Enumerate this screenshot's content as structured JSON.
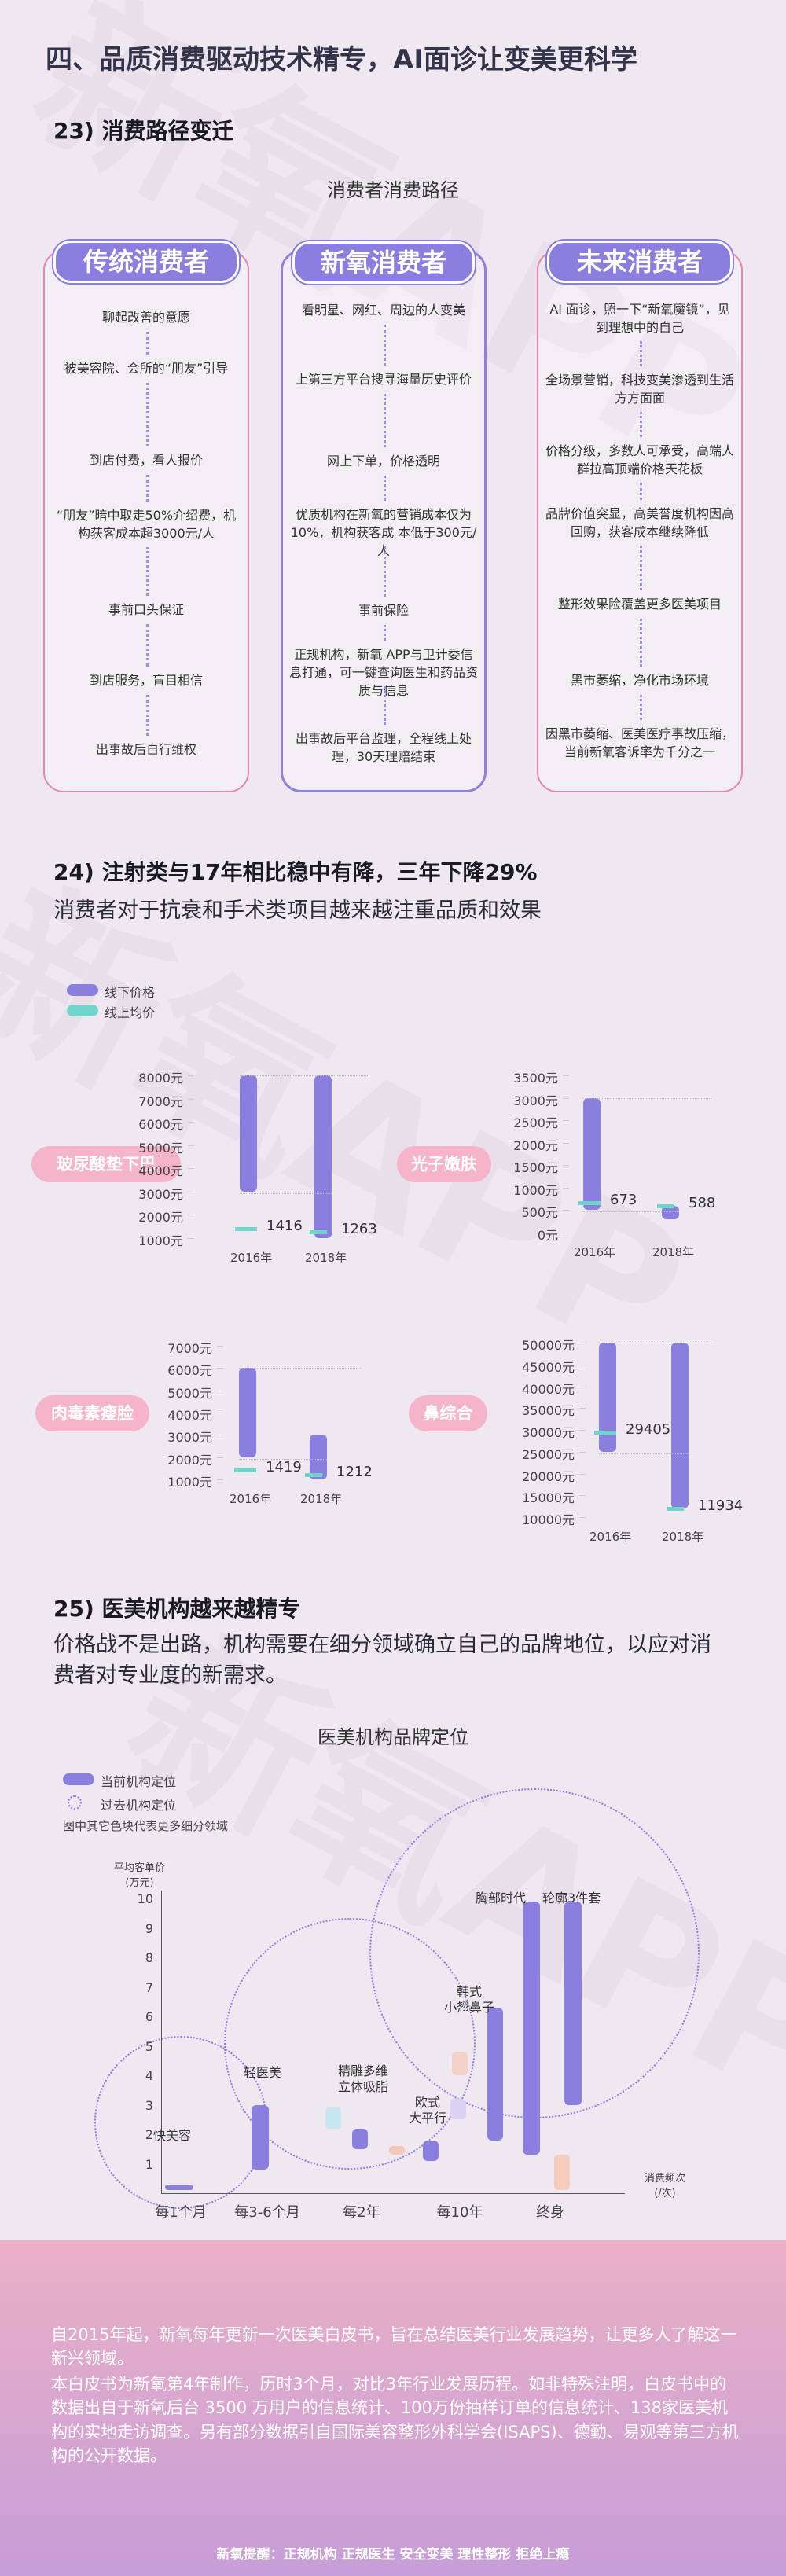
{
  "section_title": "四、品质消费驱动技术精专，AI面诊让变美更科学",
  "s23": {
    "heading": "23) 消费路径变迁",
    "chart_title": "消费者消费路径",
    "columns": [
      {
        "title": "传统消费者",
        "steps": [
          "聊起改善的意愿",
          "被美容院、会所的“朋友”引导",
          "到店付费，看人报价",
          "“朋友”暗中取走50%介绍费，机构获客成本超3000元/人",
          "事前口头保证",
          "到店服务，盲目相信",
          "出事故后自行维权"
        ]
      },
      {
        "title": "新氧消费者",
        "steps": [
          "看明星、网红、周边的人变美",
          "上第三方平台搜寻海量历史评价",
          "网上下单，价格透明",
          "优质机构在新氧的营销成本仅为 10%，机构获客成 本低于300元/人",
          "事前保险",
          "正规机构，新氧 APP与卫计委信息打通，可一键查询医生和药品资质与信息",
          "出事故后平台监理，全程线上处理，30天理赔结束"
        ]
      },
      {
        "title": "未来消费者",
        "steps": [
          "AI 面诊，照一下“新氧魔镜”，见到理想中的自己",
          "全场景营销，科技变美渗透到生活方方面面",
          "价格分级，多数人可承受，高端人群拉高顶端价格天花板",
          "品牌价值突显，高美誉度机构因高回购，获客成本继续降低",
          "整形效果险覆盖更多医美项目",
          "黑市萎缩，净化市场环境",
          "因黑市萎缩、医美医疗事故压缩，当前新氧客诉率为千分之一"
        ]
      }
    ]
  },
  "s24": {
    "heading": "24) 注射类与17年相比稳中有降，三年下降29%",
    "subheading": "消费者对于抗衰和手术类项目越来越注重品质和效果",
    "legend_offline": "线下价格",
    "legend_online": "线上均价",
    "colors": {
      "offline": "#8a7fde",
      "online": "#6fd5cb",
      "label": "#f6b4cb"
    },
    "year_labels": [
      "2016年",
      "2018年"
    ]
  },
  "chart_data": [
    {
      "type": "bar",
      "title": "玻尿酸垫下巴",
      "categories": [
        "2016年",
        "2018年"
      ],
      "yticks": [
        "8000元",
        "7000元",
        "6000元",
        "5000元",
        "4000元",
        "3000元",
        "2000元",
        "1000元"
      ],
      "ylim": [
        1000,
        8000
      ],
      "offline_range": [
        [
          3000,
          8000
        ],
        [
          1000,
          8000
        ]
      ],
      "online_avg": [
        1416,
        1263
      ],
      "online_labels": [
        "1416",
        "1263"
      ]
    },
    {
      "type": "bar",
      "title": "光子嫩肤",
      "categories": [
        "2016年",
        "2018年"
      ],
      "yticks": [
        "3500元",
        "3000元",
        "2500元",
        "2000元",
        "1500元",
        "1000元",
        "500元",
        "0元"
      ],
      "ylim": [
        0,
        3500
      ],
      "offline_range": [
        [
          500,
          3000
        ],
        [
          300,
          600
        ]
      ],
      "online_avg": [
        673,
        588
      ],
      "online_labels": [
        "673",
        "588"
      ]
    },
    {
      "type": "bar",
      "title": "肉毒素瘦脸",
      "categories": [
        "2016年",
        "2018年"
      ],
      "yticks": [
        "7000元",
        "6000元",
        "5000元",
        "4000元",
        "3000元",
        "2000元",
        "1000元"
      ],
      "ylim": [
        1000,
        7000
      ],
      "offline_range": [
        [
          2000,
          6000
        ],
        [
          1000,
          3000
        ]
      ],
      "online_avg": [
        1419,
        1212
      ],
      "online_labels": [
        "1419",
        "1212"
      ]
    },
    {
      "type": "bar",
      "title": "鼻综合",
      "categories": [
        "2016年",
        "2018年"
      ],
      "yticks": [
        "50000元",
        "45000元",
        "40000元",
        "35000元",
        "30000元",
        "25000元",
        "20000元",
        "15000元",
        "10000元"
      ],
      "ylim": [
        10000,
        50000
      ],
      "offline_range": [
        [
          25000,
          50000
        ],
        [
          12000,
          50000
        ]
      ],
      "online_avg": [
        29405,
        11934
      ],
      "online_labels": [
        "29405",
        "11934"
      ]
    },
    {
      "type": "bar",
      "title": "医美机构品牌定位",
      "xlabel": "消费频次（/次）",
      "ylabel": "平均客单价（万元）",
      "categories": [
        "每1个月",
        "每3-6个月",
        "每2年",
        "每10年",
        "终身"
      ],
      "yticks": [
        "10",
        "9",
        "8",
        "7",
        "6",
        "5",
        "4",
        "3",
        "2",
        "1"
      ],
      "ylim": [
        0,
        10
      ],
      "series": [
        {
          "name": "快美容",
          "range": [
            0.1,
            0.3
          ]
        },
        {
          "name": "轻医美",
          "range": [
            0.8,
            3
          ]
        },
        {
          "name": "精雕多维立体吸脂",
          "range": [
            1.5,
            2.2
          ]
        },
        {
          "name": "欧式大平行",
          "range": [
            1.1,
            1.8
          ]
        },
        {
          "name": "韩式小翘鼻子",
          "range": [
            1.8,
            6.3
          ]
        },
        {
          "name": "胸部时代",
          "range": [
            1.3,
            9.9
          ]
        },
        {
          "name": "轮廓3件套",
          "range": [
            3,
            9.9
          ]
        }
      ]
    }
  ],
  "s25": {
    "heading": "25) 医美机构越来越精专",
    "subheading": "价格战不是出路，机构需要在细分领域确立自己的品牌地位，以应对消费者对专业度的新需求。",
    "chart_title": "医美机构品牌定位",
    "legend_current": "当前机构定位",
    "legend_past": "过去机构定位",
    "legend_note": "图中其它色块代表更多细分领域",
    "y_axis_title": "平均客单价\n(万元)",
    "x_axis_title": "消费频次\n(/次)",
    "labels": {
      "k": "快美容",
      "q": "轻医美",
      "j": "精雕多维\n立体吸脂",
      "o": "欧式\n大平行",
      "h": "韩式\n小翘鼻子",
      "x": "胸部时代",
      "l": "轮廓3件套"
    },
    "x_cats": [
      "每1个月",
      "每3-6个月",
      "每2年",
      "每10年",
      "终身"
    ]
  },
  "footer": {
    "p1": "自2015年起，新氧每年更新一次医美白皮书，旨在总结医美行业发展趋势，让更多人了解这一新兴领域。",
    "p2": "本白皮书为新氧第4年制作，历时3个月，对比3年行业发展历程。如非特殊注明，白皮书中的数据出自于新氧后台 3500 万用户的信息统计、100万份抽样订单的信息统计、138家医美机构的实地走访调查。另有部分数据引自国际美容整形外科学会(ISAPS)、德勤、易观等第三方机构的公开数据。",
    "note": "新氧提醒：正规机构 正规医生 安全变美 理性整形 拒绝上瘾"
  },
  "watermark": "新氧APP"
}
